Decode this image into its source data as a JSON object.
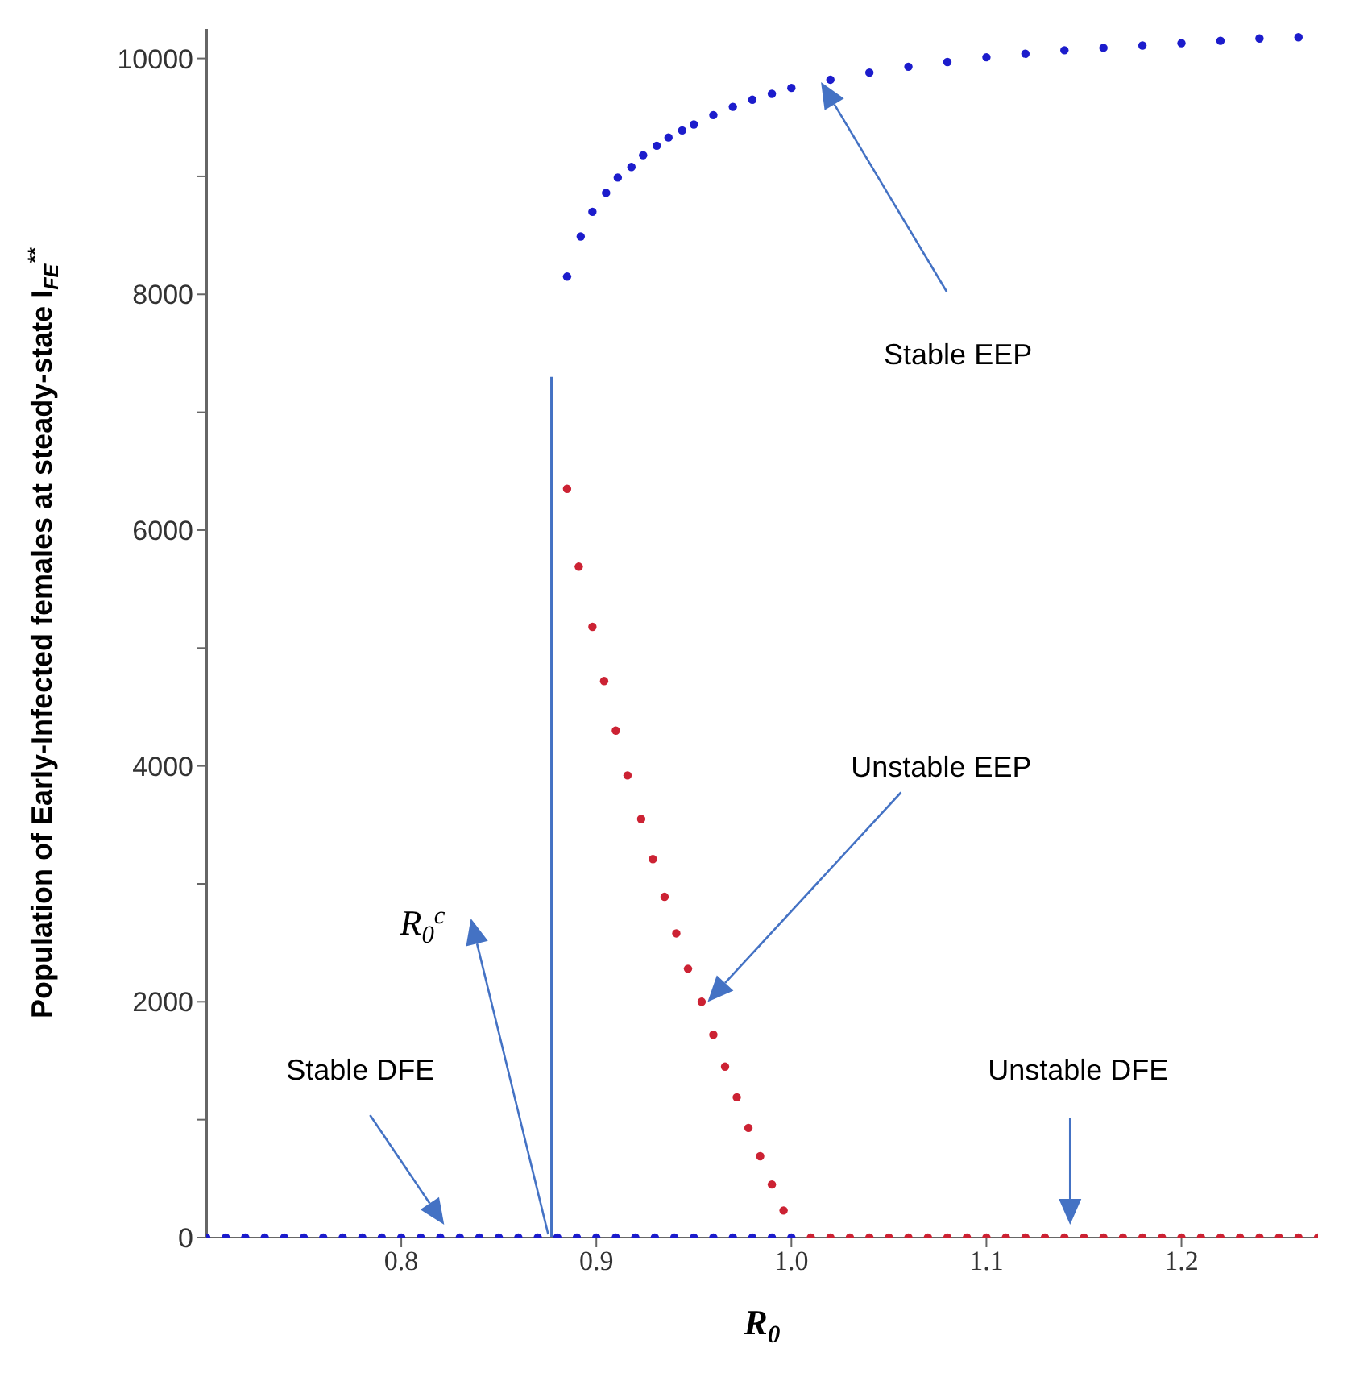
{
  "chart_data": {
    "type": "scatter",
    "xlabel": "R$_{0}$",
    "ylabel": "Population of Early-Infected females at steady-state I$_{FE}$$^{**}$",
    "xlim": [
      0.7,
      1.27
    ],
    "ylim": [
      0,
      10250
    ],
    "xticks": [
      0.8,
      0.9,
      {
        "value": 1.0,
        "label": "1.0"
      },
      1.1,
      1.2
    ],
    "yticks": [
      0,
      {
        "value": 1000,
        "label": null
      },
      2000,
      {
        "value": 3000,
        "label": null
      },
      4000,
      {
        "value": 5000,
        "label": null
      },
      6000,
      {
        "value": 7000,
        "label": null
      },
      8000,
      {
        "value": 9000,
        "label": null
      },
      10000
    ],
    "grid": false,
    "marker": "circle",
    "series": [
      {
        "color": "#1c1ccc",
        "x": [
          0.885,
          0.892,
          0.898,
          0.905,
          0.911,
          0.918,
          0.924,
          0.931,
          0.937,
          0.944,
          0.95,
          0.96,
          0.97,
          0.98,
          0.99,
          1.0,
          1.02,
          1.04,
          1.06,
          1.08,
          1.1,
          1.12,
          1.14,
          1.16,
          1.18,
          1.2,
          1.22,
          1.24,
          1.26
        ],
        "values": [
          8150,
          8490,
          8700,
          8860,
          8990,
          9080,
          9180,
          9260,
          9330,
          9390,
          9440,
          9520,
          9590,
          9650,
          9700,
          9750,
          9820,
          9880,
          9930,
          9970,
          10010,
          10040,
          10070,
          10090,
          10110,
          10130,
          10150,
          10170,
          10180
        ]
      },
      {
        "color": "#cc2233",
        "x": [
          0.885,
          0.891,
          0.898,
          0.904,
          0.91,
          0.916,
          0.923,
          0.929,
          0.935,
          0.941,
          0.947,
          0.954,
          0.96,
          0.966,
          0.972,
          0.978,
          0.984,
          0.99,
          0.996
        ],
        "values": [
          6350,
          5690,
          5180,
          4720,
          4300,
          3920,
          3550,
          3210,
          2890,
          2580,
          2280,
          2000,
          1720,
          1450,
          1190,
          930,
          690,
          450,
          230
        ]
      },
      {
        "color": "#1c1ccc",
        "x": [
          0.7,
          0.71,
          0.72,
          0.73,
          0.74,
          0.75,
          0.76,
          0.77,
          0.78,
          0.79,
          0.8,
          0.81,
          0.82,
          0.83,
          0.84,
          0.85,
          0.86,
          0.87,
          0.88,
          0.89,
          0.9,
          0.91,
          0.92,
          0.93,
          0.94,
          0.95,
          0.96,
          0.97,
          0.98,
          0.99,
          1.0
        ],
        "values": [
          0,
          0,
          0,
          0,
          0,
          0,
          0,
          0,
          0,
          0,
          0,
          0,
          0,
          0,
          0,
          0,
          0,
          0,
          0,
          0,
          0,
          0,
          0,
          0,
          0,
          0,
          0,
          0,
          0,
          0,
          0
        ]
      },
      {
        "color": "#cc2233",
        "x": [
          1.01,
          1.02,
          1.03,
          1.04,
          1.05,
          1.06,
          1.07,
          1.08,
          1.09,
          1.1,
          1.11,
          1.12,
          1.13,
          1.14,
          1.15,
          1.16,
          1.17,
          1.18,
          1.19,
          1.2,
          1.21,
          1.22,
          1.23,
          1.24,
          1.25,
          1.26,
          1.27
        ],
        "values": [
          0,
          0,
          0,
          0,
          0,
          0,
          0,
          0,
          0,
          0,
          0,
          0,
          0,
          0,
          0,
          0,
          0,
          0,
          0,
          0,
          0,
          0,
          0,
          0,
          0,
          0,
          0
        ]
      },
      {
        "type": "line",
        "marker": "none",
        "color": "#4472c4",
        "x": [
          0.877,
          0.877
        ],
        "values": [
          0,
          7300
        ]
      }
    ],
    "annotations": [
      "Stable EEP",
      "Unstable EEP",
      "Stable DFE",
      "Unstable DFE",
      "R$_{0}$$^{c}$"
    ]
  }
}
